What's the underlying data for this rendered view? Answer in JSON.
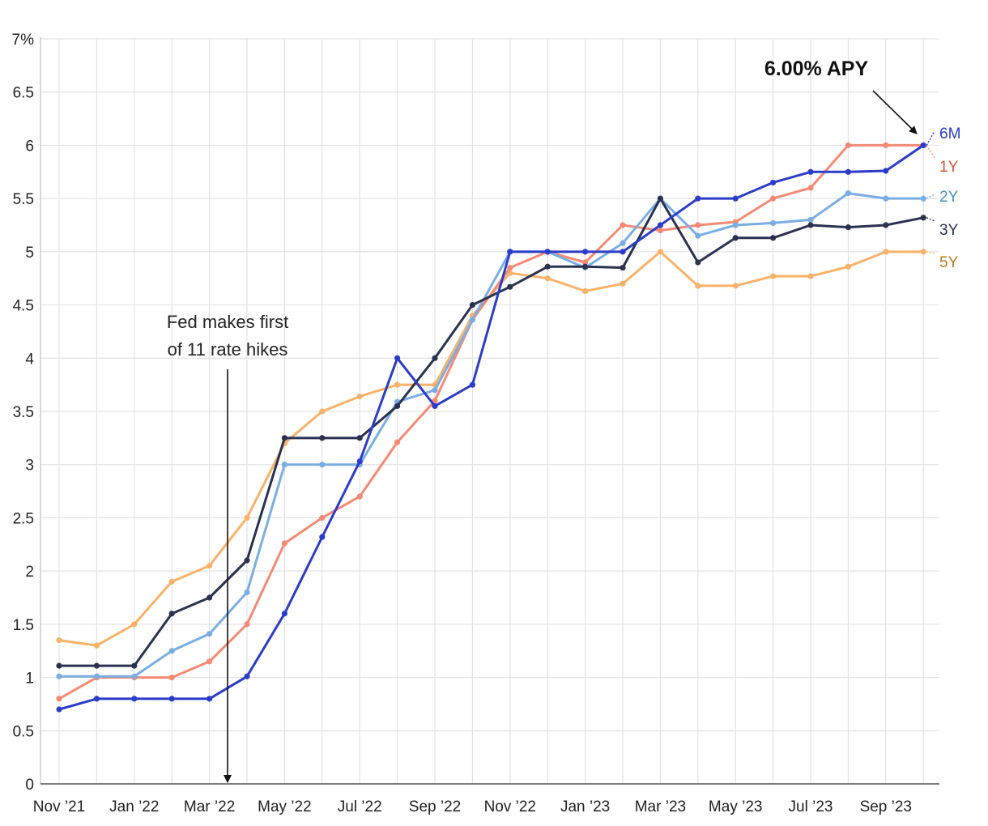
{
  "chart_data": {
    "type": "line",
    "title": "",
    "xlabel": "",
    "ylabel": "",
    "y_unit_label": "7%",
    "ylim": [
      0,
      7
    ],
    "yticks": [
      "0",
      "0.5",
      "1",
      "1.5",
      "2",
      "2.5",
      "3",
      "3.5",
      "4",
      "4.5",
      "5",
      "5.5",
      "6",
      "6.5",
      "7%"
    ],
    "x_labels": [
      "Nov ’21",
      "Jan ’22",
      "Mar ’22",
      "May ’22",
      "Jul ’22",
      "Sep ’22",
      "Nov ’22",
      "Jan ’23",
      "Mar ’23",
      "May ’23",
      "Jul ’23",
      "Sep ’23"
    ],
    "x": [
      "Nov 2021",
      "Dec 2021",
      "Jan 2022",
      "Feb 2022",
      "Mar 2022",
      "Apr 2022",
      "May 2022",
      "Jun 2022",
      "Jul 2022",
      "Aug 2022",
      "Sep 2022",
      "Oct 2022",
      "Nov 2022",
      "Dec 2022",
      "Jan 2023",
      "Feb 2023",
      "Mar 2023",
      "Apr 2023",
      "May 2023",
      "Jun 2023",
      "Jul 2023",
      "Aug 2023",
      "Sep 2023",
      "Oct 2023"
    ],
    "grid": true,
    "legend": "end-of-line labels on right",
    "series": [
      {
        "name": "5Y",
        "color": "#f8b26a",
        "label_color": "#b87a1e",
        "values": [
          1.35,
          1.3,
          1.5,
          1.9,
          2.05,
          2.5,
          3.2,
          3.5,
          3.64,
          3.75,
          3.75,
          4.4,
          4.8,
          4.75,
          4.63,
          4.7,
          5.0,
          4.68,
          4.68,
          4.77,
          4.77,
          4.86,
          5.0,
          5.0
        ]
      },
      {
        "name": "1Y",
        "color": "#f48a74",
        "label_color": "#d4553a",
        "values": [
          0.8,
          1.0,
          1.0,
          1.0,
          1.15,
          1.5,
          2.26,
          2.5,
          2.7,
          3.21,
          3.6,
          4.36,
          4.85,
          5.0,
          4.9,
          5.25,
          5.2,
          5.25,
          5.28,
          5.5,
          5.6,
          6.0,
          6.0,
          6.0
        ]
      },
      {
        "name": "2Y",
        "color": "#7aaee2",
        "label_color": "#4d8fd0",
        "values": [
          1.01,
          1.01,
          1.01,
          1.25,
          1.41,
          1.8,
          3.0,
          3.0,
          3.0,
          3.59,
          3.7,
          4.36,
          5.0,
          5.0,
          4.85,
          5.08,
          5.5,
          5.15,
          5.25,
          5.27,
          5.3,
          5.55,
          5.5,
          5.5
        ]
      },
      {
        "name": "3Y",
        "color": "#2a3250",
        "label_color": "#2a3250",
        "values": [
          1.11,
          1.11,
          1.11,
          1.6,
          1.75,
          2.1,
          3.25,
          3.25,
          3.25,
          3.55,
          4.0,
          4.5,
          4.67,
          4.86,
          4.86,
          4.85,
          5.5,
          4.9,
          5.13,
          5.13,
          5.25,
          5.23,
          5.25,
          5.32
        ]
      },
      {
        "name": "6M",
        "color": "#2b3cc8",
        "label_color": "#2b3cc8",
        "values": [
          0.7,
          0.8,
          0.8,
          0.8,
          0.8,
          1.01,
          1.6,
          2.32,
          3.03,
          4.0,
          3.55,
          3.75,
          5.0,
          5.0,
          5.0,
          5.0,
          5.25,
          5.5,
          5.5,
          5.65,
          5.75,
          5.75,
          5.76,
          6.0
        ]
      }
    ],
    "annotations": [
      {
        "text_lines": [
          "Fed makes first",
          "of 11 rate hikes"
        ],
        "x": "Mar 2022 (mid-month)",
        "arrow": "down to x-axis"
      },
      {
        "text": "6.00% APY",
        "points_to": {
          "series": "6M",
          "x": "Oct 2023",
          "y": 6.0
        }
      }
    ]
  }
}
